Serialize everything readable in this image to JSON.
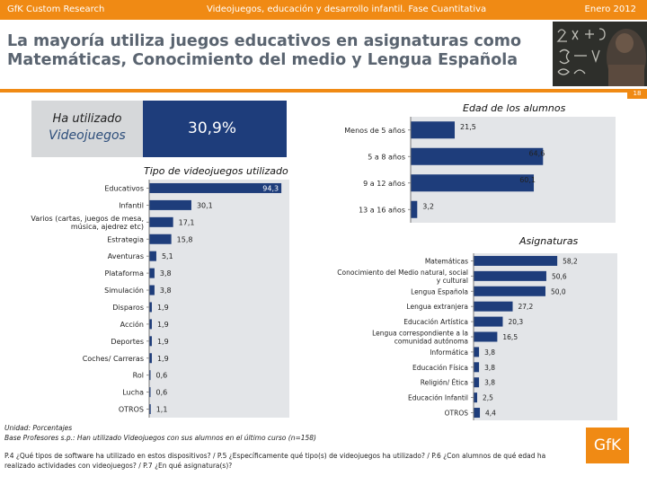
{
  "header": {
    "left": "GfK Custom Research",
    "center": "Videojuegos, educación y desarrollo infantil. Fase Cuantitativa",
    "right": "Enero 2012"
  },
  "title": {
    "line1": "La mayoría utiliza juegos educativos en asignaturas como",
    "line2": "Matemáticas, Conocimiento del medio y Lengua Española"
  },
  "page_number": "18",
  "highlight": {
    "line1": "Ha utilizado",
    "line2": "Videojuegos",
    "value": "30,9%"
  },
  "colors": {
    "brand": "#f08a14",
    "bar": "#1e3d7b",
    "plot_bg": "#e3e5e8"
  },
  "chart_data": [
    {
      "type": "bar",
      "orientation": "horizontal",
      "title": "Tipo de videojuegos utilizado",
      "categories": [
        "Educativos",
        "Infantil",
        "Varios (cartas, juegos de mesa, música, ajedrez etc)",
        "Estrategia",
        "Aventuras",
        "Plataforma",
        "Simulación",
        "Disparos",
        "Acción",
        "Deportes",
        "Coches/ Carreras",
        "Rol",
        "Lucha",
        "Otros"
      ],
      "labels": [
        "Educativos",
        "Infantil",
        "Varios (cartas, juegos de mesa,\nmúsica, ajedrez etc)",
        "Estrategia",
        "Aventuras",
        "Plataforma",
        "Simulación",
        "Disparos",
        "Acción",
        "Deportes",
        "Coches/ Carreras",
        "Rol",
        "Lucha",
        "OTROS"
      ],
      "values": [
        94.3,
        30.1,
        17.1,
        15.8,
        5.1,
        3.8,
        3.8,
        1.9,
        1.9,
        1.9,
        1.9,
        0.6,
        0.6,
        1.1
      ],
      "value_labels": [
        "94,3",
        "30,1",
        "17,1",
        "15,8",
        "5,1",
        "3,8",
        "3,8",
        "1,9",
        "1,9",
        "1,9",
        "1,9",
        "0,6",
        "0,6",
        "1,1"
      ],
      "xlim": [
        0,
        100
      ]
    },
    {
      "type": "bar",
      "orientation": "horizontal",
      "title": "Edad de los alumnos",
      "categories": [
        "Menos de 5 años",
        "5 a 8 años",
        "9 a 12 años",
        "13 a 16 años"
      ],
      "labels": [
        "Menos de 5 años",
        "5 a 8 años",
        "9 a 12 años",
        "13 a 16 años"
      ],
      "values": [
        21.5,
        64.6,
        60.1,
        3.2
      ],
      "value_labels": [
        "21,5",
        "64,6",
        "60,1",
        "3,2"
      ],
      "xlim": [
        0,
        100
      ]
    },
    {
      "type": "bar",
      "orientation": "horizontal",
      "title": "Asignaturas",
      "categories": [
        "Matemáticas",
        "Conocimiento del Medio natural, social y cultural",
        "Lengua Española",
        "Lengua extranjera",
        "Educación Artística",
        "Lengua correspondiente a la comunidad autónoma",
        "Informática",
        "Educación Física",
        "Religión/ Ética",
        "Educación Infantil",
        "Otros"
      ],
      "labels": [
        "Matemáticas",
        "Conocimiento del Medio natural, social\ny cultural",
        "Lengua Española",
        "Lengua extranjera",
        "Educación Artística",
        "Lengua correspondiente a la\ncomunidad autónoma",
        "Informática",
        "Educación Física",
        "Religión/ Ética",
        "Educación Infantil",
        "OTROS"
      ],
      "values": [
        58.2,
        50.6,
        50.0,
        27.2,
        20.3,
        16.5,
        3.8,
        3.8,
        3.8,
        2.5,
        4.4
      ],
      "value_labels": [
        "58,2",
        "50,6",
        "50,0",
        "27,2",
        "20,3",
        "16,5",
        "3,8",
        "3,8",
        "3,8",
        "2,5",
        "4,4"
      ],
      "xlim": [
        0,
        100
      ]
    }
  ],
  "footnotes": {
    "line1": "Unidad: Porcentajes",
    "line2": "Base Profesores s.p.: Han utilizado Videojuegos con sus alumnos en el último curso (n=158)",
    "line3a": "P.4 ¿Qué tipos de software ha utilizado en estos dispositivos? / P.5 ¿Específicamente qué tipo(s) de videojuegos ha utilizado? / P.6 ¿Con alumnos de qué edad ha",
    "line3b": "realizado actividades con videojuegos? / P.7 ¿En qué asignatura(s)?"
  },
  "logo": "GfK"
}
